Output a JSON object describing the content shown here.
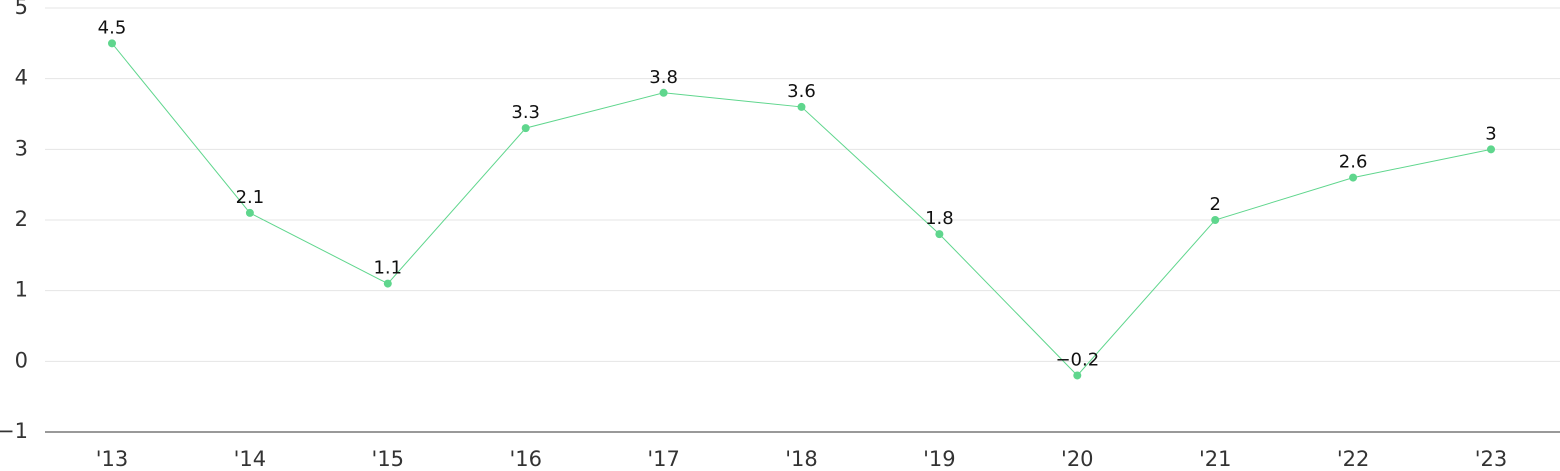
{
  "chart_data": {
    "type": "line",
    "categories": [
      "'13",
      "'14",
      "'15",
      "'16",
      "'17",
      "'18",
      "'19",
      "'20",
      "'21",
      "'22",
      "'23"
    ],
    "series": [
      {
        "color": "#5fd68d",
        "values": [
          4.5,
          2.1,
          1.1,
          3.3,
          3.8,
          3.6,
          1.8,
          -0.2,
          2,
          2.6,
          3
        ],
        "value_labels": [
          "4.5",
          "2.1",
          "1.1",
          "3.3",
          "3.8",
          "3.6",
          "1.8",
          "−0.2",
          "2",
          "2.6",
          "3"
        ]
      }
    ],
    "ylim": [
      -1,
      5
    ],
    "yticks": [
      {
        "value": -1,
        "label": "−1"
      },
      0,
      1,
      2,
      3,
      4,
      5
    ],
    "grid": true
  }
}
